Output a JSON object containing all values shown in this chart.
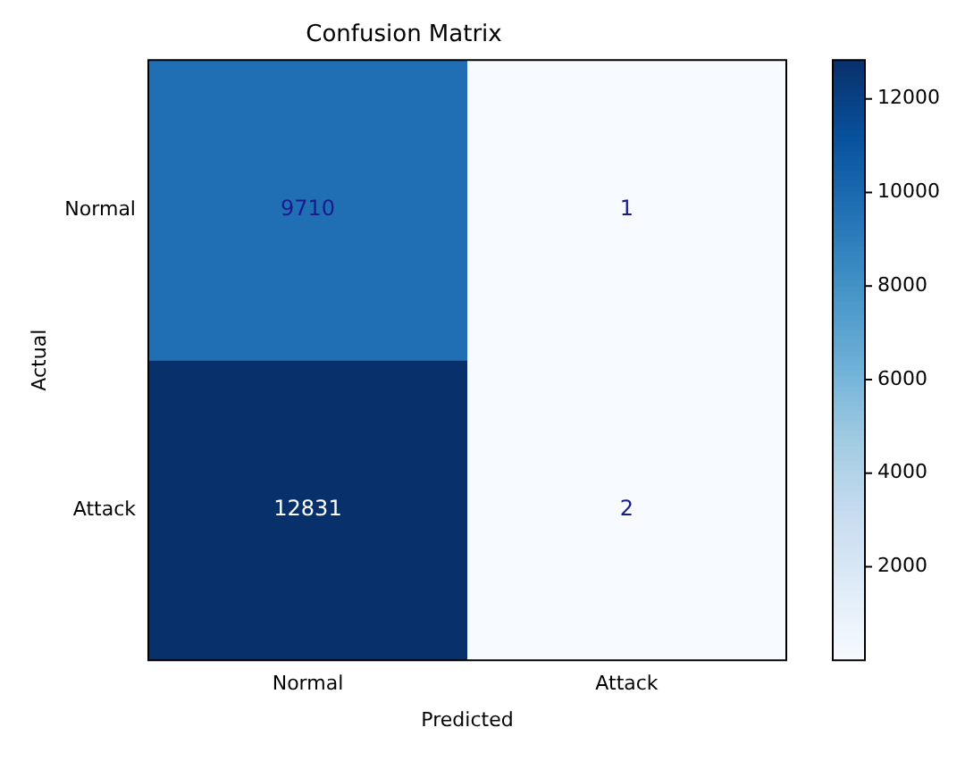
{
  "chart_data": {
    "type": "heatmap",
    "title": "Confusion Matrix",
    "xlabel": "Predicted",
    "ylabel": "Actual",
    "categories": [
      "Normal",
      "Attack"
    ],
    "y_categories": [
      "Normal",
      "Attack"
    ],
    "cells": [
      [
        9710,
        1
      ],
      [
        12831,
        2
      ]
    ],
    "data_labels": true,
    "clim": [
      1,
      12831
    ],
    "cticks": [
      2000,
      4000,
      6000,
      8000,
      10000,
      12000
    ]
  }
}
